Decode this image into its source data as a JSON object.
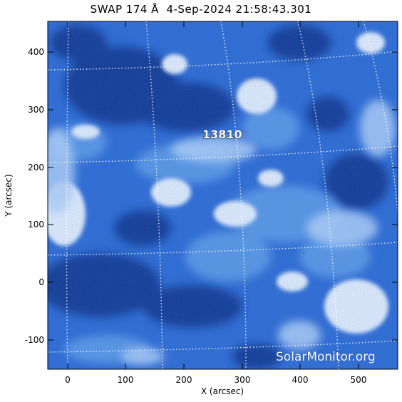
{
  "title": "SWAP 174 Å  4-Sep-2024 21:58:43.301",
  "xaxis": {
    "label": "X (arcsec)",
    "ticks": [
      "0",
      "100",
      "200",
      "300",
      "400",
      "500"
    ]
  },
  "yaxis": {
    "label": "Y (arcsec)",
    "ticks": [
      "400",
      "300",
      "200",
      "100",
      "0",
      "-100"
    ]
  },
  "region_label": "13810",
  "watermark": "SolarMonitor.org",
  "colors": {
    "base": "#1f5fd0",
    "dark": "#0d2f86",
    "bright": "#ffffff",
    "mid": "#7fb0f0",
    "grid": "#ffffff"
  }
}
